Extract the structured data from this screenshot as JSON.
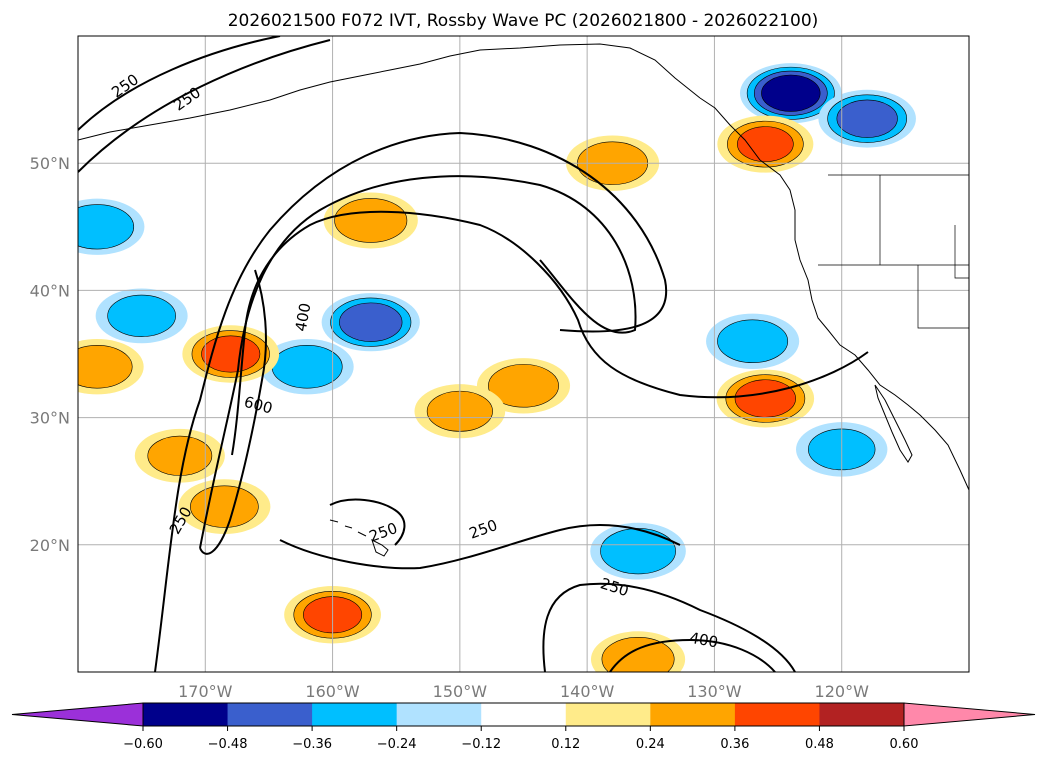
{
  "title": "2026021500 F072 IVT, Rossby Wave PC (2026021800 - 2026022100)",
  "chart_data": {
    "type": "heatmap",
    "map": {
      "projection": "PlateCarree",
      "lon_range": [
        -180,
        -110
      ],
      "lat_range": [
        10,
        60
      ],
      "grid": true,
      "lon_ticks": [
        {
          "lon": -170,
          "label": "170°W"
        },
        {
          "lon": -160,
          "label": "160°W"
        },
        {
          "lon": -150,
          "label": "150°W"
        },
        {
          "lon": -140,
          "label": "140°W"
        },
        {
          "lon": -130,
          "label": "130°W"
        },
        {
          "lon": -120,
          "label": "120°W"
        }
      ],
      "lat_ticks": [
        {
          "lat": 20,
          "label": "20°N"
        },
        {
          "lat": 30,
          "label": "30°N"
        },
        {
          "lat": 40,
          "label": "40°N"
        },
        {
          "lat": 50,
          "label": "50°N"
        }
      ]
    },
    "colorbar": {
      "levels": [
        -0.72,
        -0.6,
        -0.48,
        -0.36,
        -0.24,
        -0.12,
        0.12,
        0.24,
        0.36,
        0.48,
        0.6,
        0.72
      ],
      "tick_labels": [
        "−0.60",
        "−0.48",
        "−0.36",
        "−0.24",
        "−0.12",
        "0.12",
        "0.24",
        "0.36",
        "0.48",
        "0.60"
      ],
      "colors": [
        "#9b30d9",
        "#00008b",
        "#3a5fcd",
        "#00bfff",
        "#b0e2ff",
        "#ffffff",
        "#ffeb8a",
        "#ffa500",
        "#ff4500",
        "#b22222",
        "#ff88aa"
      ],
      "extend": "both"
    },
    "ivt_contours": [
      {
        "level": 250,
        "label": "250"
      },
      {
        "level": 400,
        "label": "400"
      },
      {
        "level": 600,
        "label": "600"
      }
    ],
    "pc_anomalies": [
      {
        "lon": -124,
        "lat": 55.5,
        "value": -0.55
      },
      {
        "lon": -118,
        "lat": 53.5,
        "value": -0.4
      },
      {
        "lon": -157,
        "lat": 37.5,
        "value": -0.42
      },
      {
        "lon": -162,
        "lat": 34,
        "value": -0.3
      },
      {
        "lon": -175,
        "lat": 38,
        "value": -0.28
      },
      {
        "lon": -178.5,
        "lat": 45,
        "value": -0.33
      },
      {
        "lon": -127,
        "lat": 36,
        "value": -0.3
      },
      {
        "lon": -120,
        "lat": 27.5,
        "value": -0.27
      },
      {
        "lon": -136,
        "lat": 19.5,
        "value": -0.35
      },
      {
        "lon": -168,
        "lat": 35,
        "value": 0.38
      },
      {
        "lon": -178.5,
        "lat": 34,
        "value": 0.3
      },
      {
        "lon": -126,
        "lat": 31.5,
        "value": 0.4
      },
      {
        "lon": -145,
        "lat": 32.5,
        "value": 0.3
      },
      {
        "lon": -160,
        "lat": 14.5,
        "value": 0.38
      },
      {
        "lon": -157,
        "lat": 45.5,
        "value": 0.32
      },
      {
        "lon": -138,
        "lat": 50,
        "value": 0.3
      },
      {
        "lon": -126,
        "lat": 51.5,
        "value": 0.36
      },
      {
        "lon": -168.5,
        "lat": 23,
        "value": 0.28
      },
      {
        "lon": -150,
        "lat": 30.5,
        "value": 0.26
      },
      {
        "lon": -136,
        "lat": 11,
        "value": 0.32
      },
      {
        "lon": -172,
        "lat": 27,
        "value": 0.25
      }
    ]
  }
}
